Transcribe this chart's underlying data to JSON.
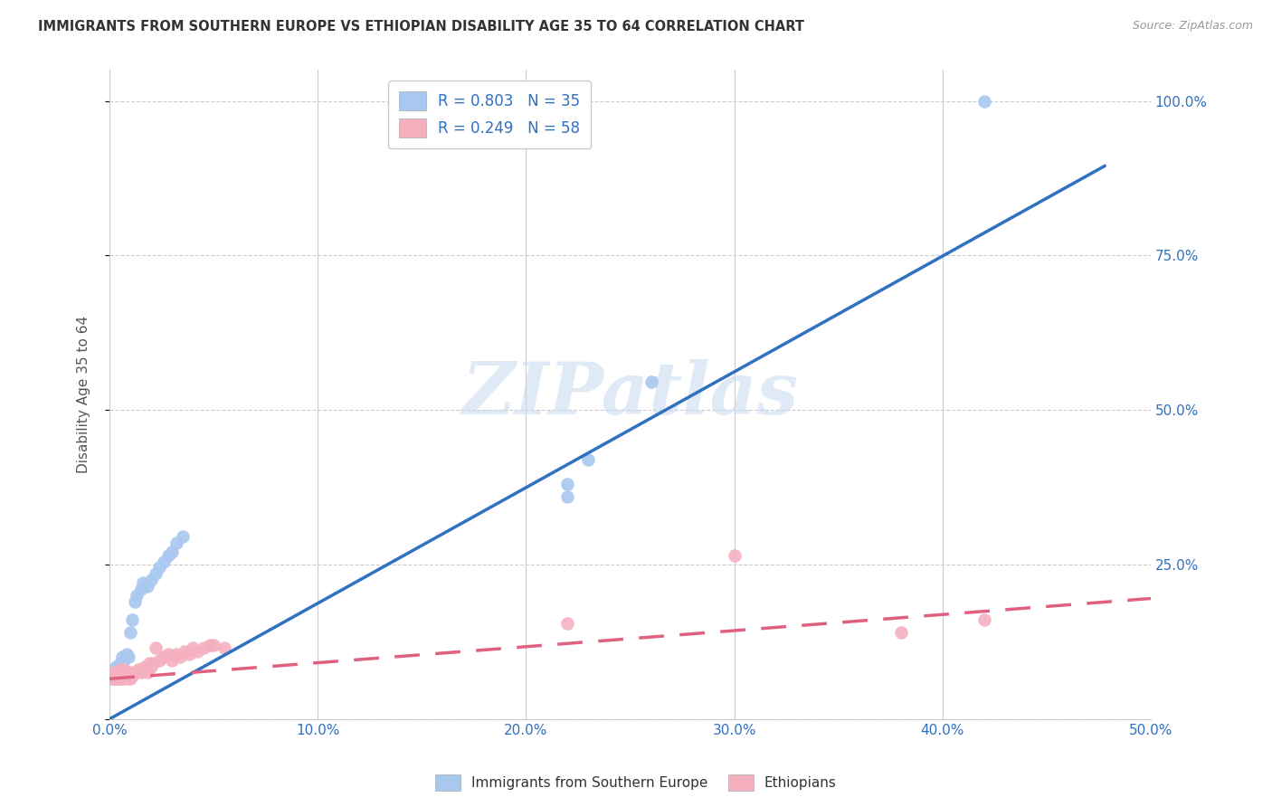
{
  "title": "IMMIGRANTS FROM SOUTHERN EUROPE VS ETHIOPIAN DISABILITY AGE 35 TO 64 CORRELATION CHART",
  "source": "Source: ZipAtlas.com",
  "ylabel": "Disability Age 35 to 64",
  "xlim": [
    0.0,
    0.5
  ],
  "ylim": [
    0.0,
    1.05
  ],
  "xticks": [
    0.0,
    0.1,
    0.2,
    0.3,
    0.4,
    0.5
  ],
  "yticks": [
    0.0,
    0.25,
    0.5,
    0.75,
    1.0
  ],
  "xtick_labels": [
    "0.0%",
    "10.0%",
    "20.0%",
    "30.0%",
    "40.0%",
    "50.0%"
  ],
  "ytick_labels": [
    "",
    "25.0%",
    "50.0%",
    "75.0%",
    "100.0%"
  ],
  "blue_color": "#a8c8f0",
  "blue_line_color": "#3070c0",
  "pink_color": "#f5b0c0",
  "pink_line_color": "#e06080",
  "legend_label_color": "#3070c0",
  "R_blue": 0.803,
  "N_blue": 35,
  "R_pink": 0.249,
  "N_pink": 58,
  "legend_label_blue": "Immigrants from Southern Europe",
  "legend_label_pink": "Ethiopians",
  "watermark": "ZIPatlas",
  "blue_line_x0": 0.0,
  "blue_line_y0": 0.0,
  "blue_line_x1": 0.478,
  "blue_line_y1": 0.895,
  "pink_line_x0": 0.0,
  "pink_line_y0": 0.065,
  "pink_line_x1": 0.5,
  "pink_line_y1": 0.195,
  "blue_x": [
    0.001,
    0.001,
    0.002,
    0.002,
    0.003,
    0.003,
    0.003,
    0.004,
    0.004,
    0.005,
    0.005,
    0.006,
    0.007,
    0.008,
    0.009,
    0.01,
    0.011,
    0.012,
    0.013,
    0.015,
    0.016,
    0.018,
    0.02,
    0.022,
    0.024,
    0.026,
    0.028,
    0.03,
    0.032,
    0.035,
    0.22,
    0.22,
    0.23,
    0.26,
    0.42
  ],
  "blue_y": [
    0.065,
    0.07,
    0.07,
    0.08,
    0.065,
    0.075,
    0.085,
    0.07,
    0.08,
    0.07,
    0.09,
    0.1,
    0.095,
    0.105,
    0.1,
    0.14,
    0.16,
    0.19,
    0.2,
    0.21,
    0.22,
    0.215,
    0.225,
    0.235,
    0.245,
    0.255,
    0.265,
    0.27,
    0.285,
    0.295,
    0.38,
    0.36,
    0.42,
    0.545,
    1.0
  ],
  "pink_x": [
    0.001,
    0.001,
    0.001,
    0.001,
    0.002,
    0.002,
    0.002,
    0.002,
    0.003,
    0.003,
    0.003,
    0.004,
    0.004,
    0.004,
    0.005,
    0.005,
    0.005,
    0.006,
    0.006,
    0.007,
    0.007,
    0.007,
    0.008,
    0.008,
    0.009,
    0.009,
    0.01,
    0.01,
    0.011,
    0.012,
    0.013,
    0.014,
    0.015,
    0.016,
    0.017,
    0.018,
    0.019,
    0.02,
    0.021,
    0.022,
    0.024,
    0.026,
    0.028,
    0.03,
    0.032,
    0.034,
    0.036,
    0.038,
    0.04,
    0.042,
    0.045,
    0.048,
    0.05,
    0.055,
    0.22,
    0.3,
    0.38,
    0.42
  ],
  "pink_y": [
    0.065,
    0.068,
    0.07,
    0.072,
    0.065,
    0.068,
    0.07,
    0.075,
    0.065,
    0.068,
    0.075,
    0.065,
    0.07,
    0.075,
    0.065,
    0.07,
    0.08,
    0.065,
    0.075,
    0.065,
    0.07,
    0.08,
    0.068,
    0.075,
    0.065,
    0.07,
    0.065,
    0.075,
    0.07,
    0.075,
    0.075,
    0.08,
    0.075,
    0.08,
    0.085,
    0.075,
    0.09,
    0.085,
    0.09,
    0.115,
    0.095,
    0.1,
    0.105,
    0.095,
    0.105,
    0.1,
    0.11,
    0.105,
    0.115,
    0.11,
    0.115,
    0.12,
    0.12,
    0.115,
    0.155,
    0.265,
    0.14,
    0.16
  ]
}
